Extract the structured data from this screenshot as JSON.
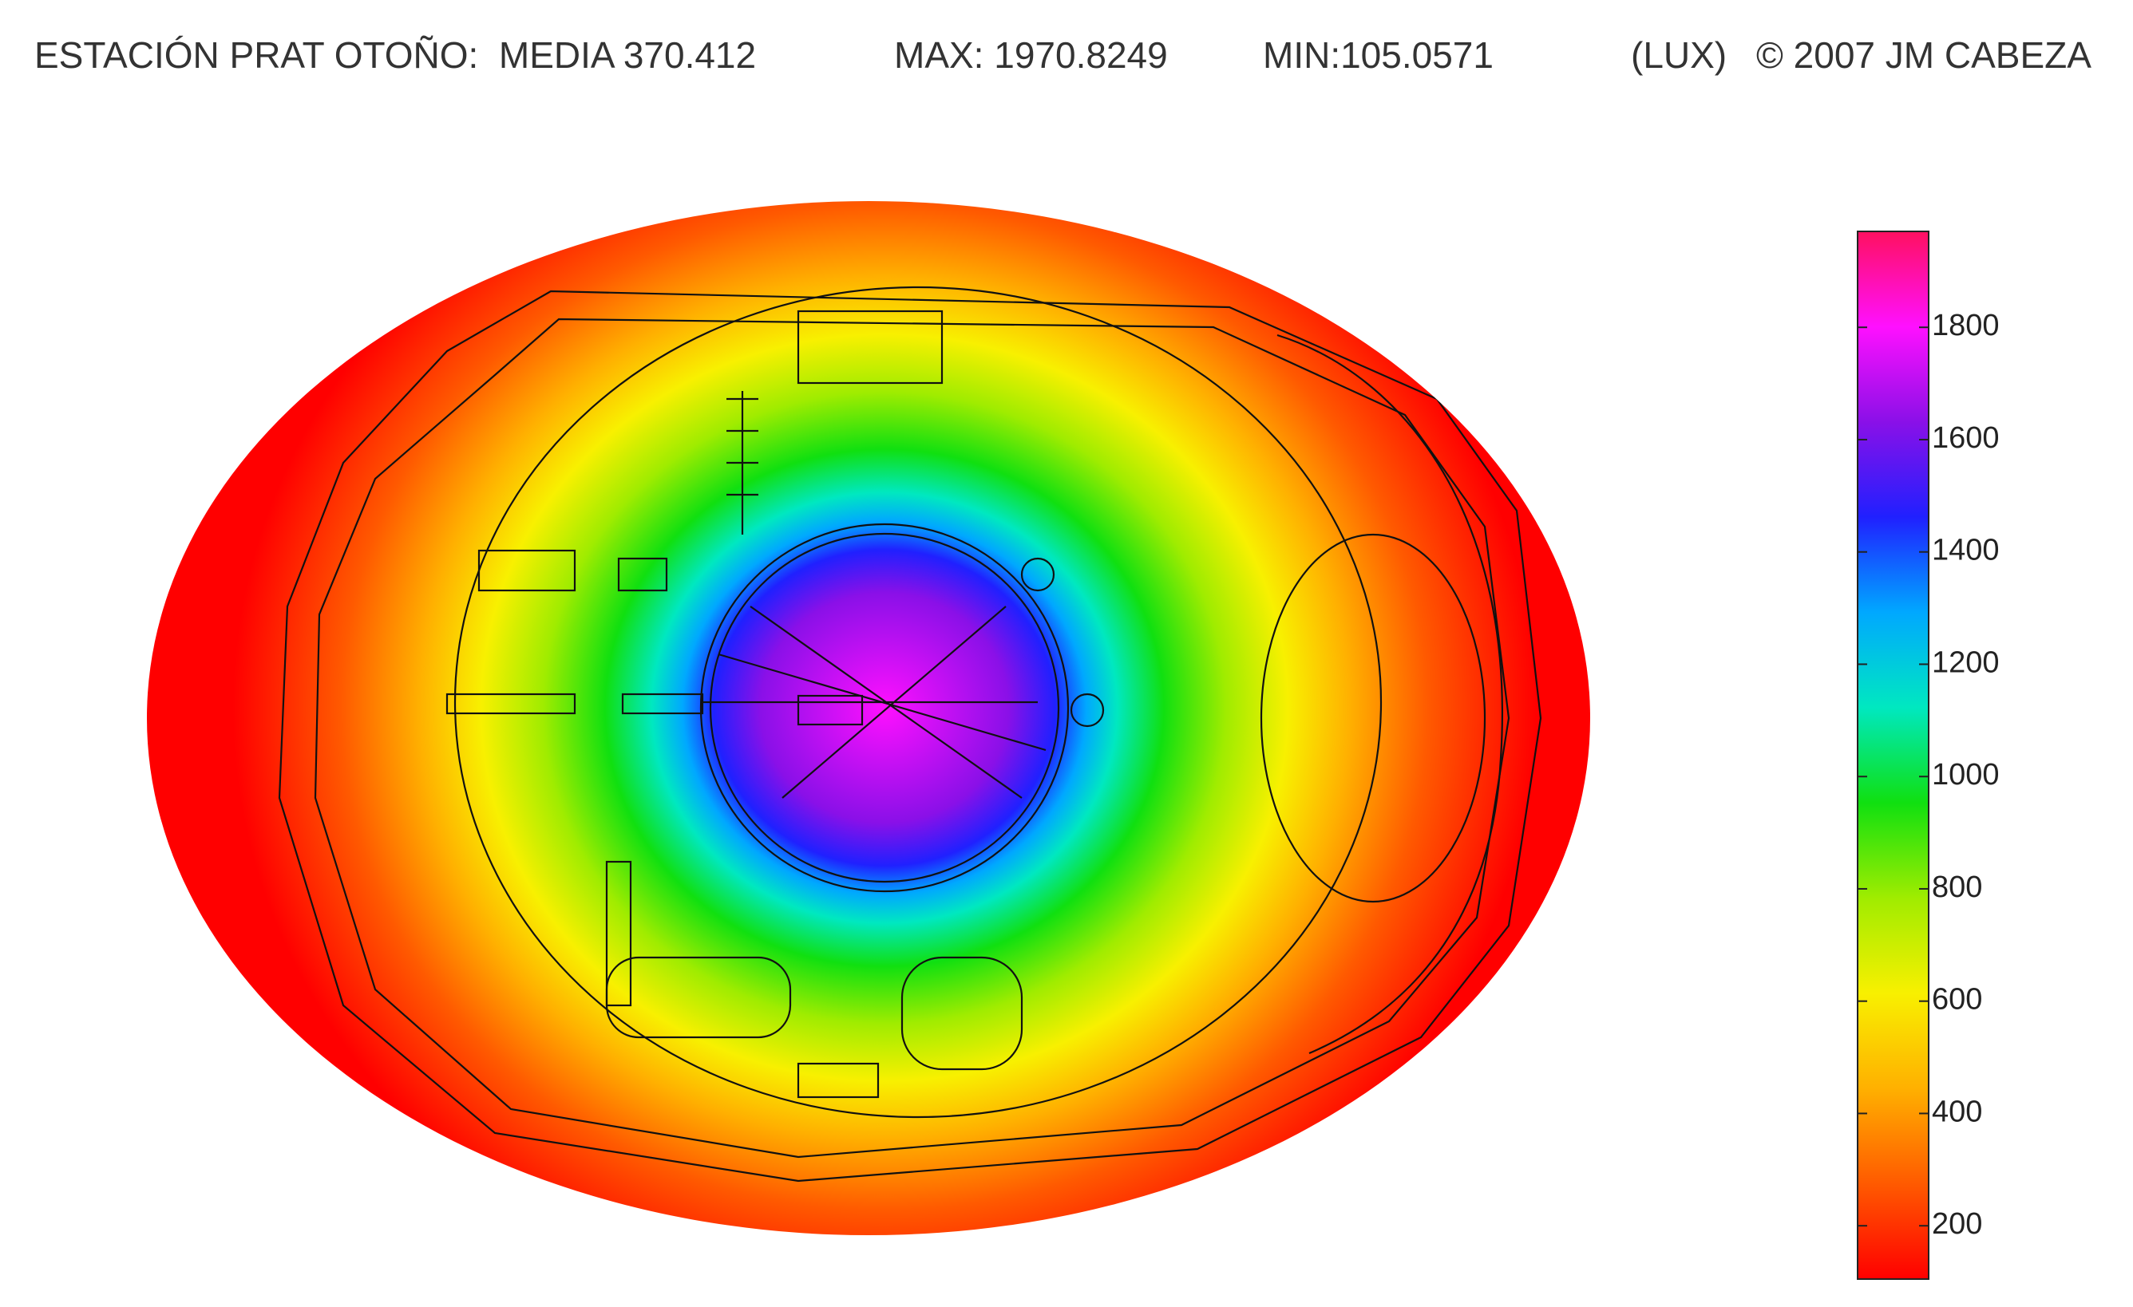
{
  "chart_data": {
    "type": "heatmap",
    "title": "ESTACIÓN PRAT OTOÑO:  MEDIA 370.412",
    "max_label": "MAX: 1970.8249",
    "min_label": "MIN:105.0571",
    "unit": "(LUX)",
    "credit": "© 2007 JM CABEZA",
    "clim": [
      105.0571,
      1970.8249
    ],
    "cticks": [
      200,
      400,
      600,
      800,
      1000,
      1200,
      1400,
      1600,
      1800
    ],
    "colormap": [
      "#ff0000",
      "#ff5a00",
      "#ffb000",
      "#f8f000",
      "#a0ec00",
      "#10e010",
      "#00e8c0",
      "#00a8ff",
      "#2020ff",
      "#8a10e8",
      "#ff10ff",
      "#ff1060"
    ]
  }
}
